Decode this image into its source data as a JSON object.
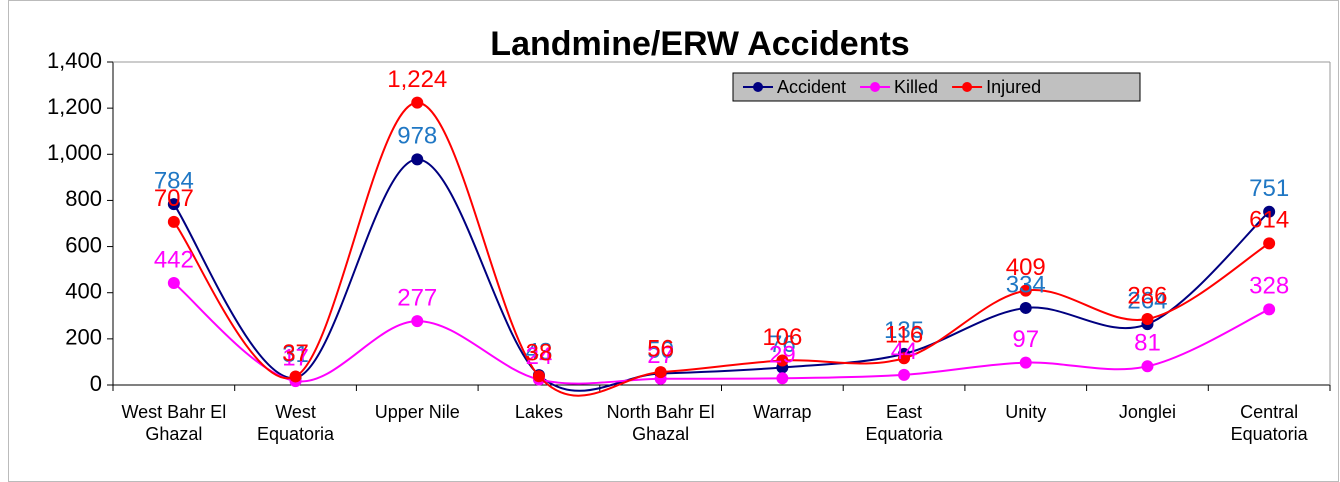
{
  "chart_data": {
    "type": "line",
    "title": "Landmine/ERW Accidents",
    "categories": [
      "West Bahr El Ghazal",
      "West Equatoria",
      "Upper Nile",
      "Lakes",
      "North Bahr El Ghazal",
      "Warrap",
      "East Equatoria",
      "Unity",
      "Jonglei",
      "Central Equatoria"
    ],
    "series": [
      {
        "name": "Accident",
        "color": "#000080",
        "label_color": "#1f77c4",
        "values": [
          784,
          31,
          978,
          43,
          50,
          76,
          135,
          334,
          264,
          751
        ]
      },
      {
        "name": "Killed",
        "color": "#ff00ff",
        "label_color": "#ff00ff",
        "values": [
          442,
          17,
          277,
          24,
          27,
          29,
          44,
          97,
          81,
          328
        ]
      },
      {
        "name": "Injured",
        "color": "#ff0000",
        "label_color": "#ff0000",
        "values": [
          707,
          37,
          1224,
          38,
          56,
          106,
          116,
          409,
          286,
          614
        ],
        "value_labels": [
          "707",
          "37",
          "1,224",
          "38",
          "56",
          "106",
          "116",
          "409",
          "286",
          "614"
        ]
      }
    ],
    "ylim": [
      0,
      1400
    ],
    "yticks": [
      0,
      200,
      400,
      600,
      800,
      {
        "value": 1000,
        "label": "1,000"
      },
      {
        "value": 1200,
        "label": "1,200"
      },
      {
        "value": 1400,
        "label": "1,400"
      }
    ],
    "smooth": true,
    "legend": "top-right"
  }
}
